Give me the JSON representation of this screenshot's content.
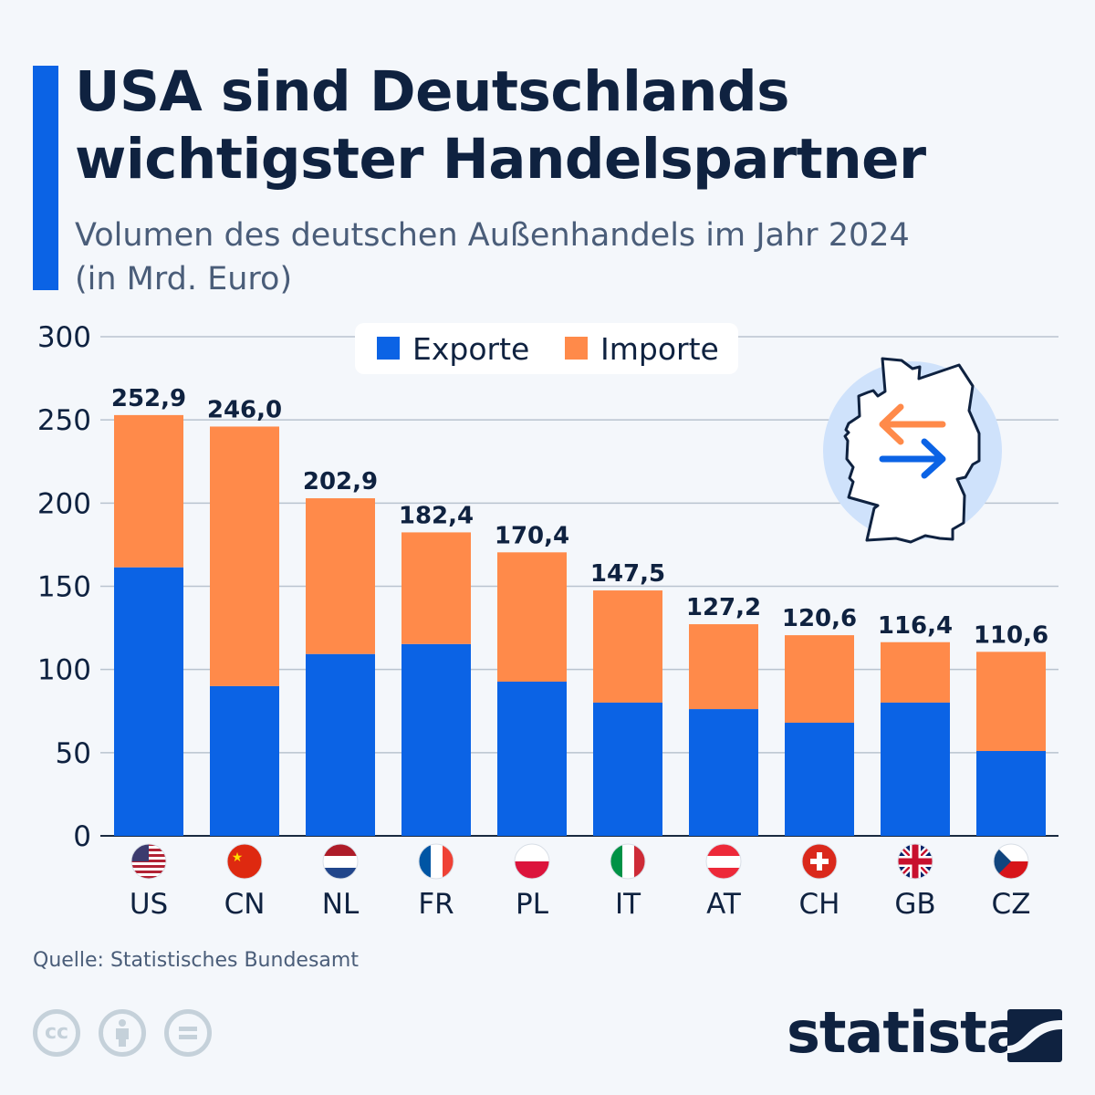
{
  "title": {
    "line1": "USA sind Deutschlands",
    "line2": "wichtigster Handelspartner"
  },
  "subtitle": {
    "line1": "Volumen des deutschen Außenhandels im Jahr 2024",
    "line2": "(in Mrd. Euro)"
  },
  "source": "Quelle: Statistisches Bundesamt",
  "brand": "statista",
  "colors": {
    "exports": "#0b63e5",
    "imports": "#ff8a4a",
    "accent": "#0b63e5",
    "text": "#0f2240"
  },
  "icons": [
    "germany-trade-arrows-icon",
    "cc-icon",
    "attribution-icon",
    "no-derivatives-icon",
    "statista-logo-icon"
  ],
  "chart_data": {
    "type": "bar",
    "stacked": true,
    "categories": [
      "US",
      "CN",
      "NL",
      "FR",
      "PL",
      "IT",
      "AT",
      "CH",
      "GB",
      "CZ"
    ],
    "flags": [
      "us-flag",
      "cn-flag",
      "nl-flag",
      "fr-flag",
      "pl-flag",
      "it-flag",
      "at-flag",
      "ch-flag",
      "gb-flag",
      "cz-flag"
    ],
    "series": [
      {
        "name": "Exporte",
        "values": [
          161.4,
          90.0,
          109.3,
          115.3,
          92.7,
          80.1,
          76.2,
          68.0,
          80.1,
          51.0
        ]
      },
      {
        "name": "Importe",
        "values": [
          91.5,
          156.0,
          93.6,
          67.1,
          77.7,
          67.4,
          51.0,
          52.6,
          36.3,
          59.6
        ]
      }
    ],
    "totals": [
      "252,9",
      "246,0",
      "202,9",
      "182,4",
      "170,4",
      "147,5",
      "127,2",
      "120,6",
      "116,4",
      "110,6"
    ],
    "ylim": [
      0,
      300
    ],
    "yticks": [
      "0",
      "50",
      "100",
      "150",
      "200",
      "250",
      "300"
    ],
    "grid": true,
    "legend": "top-center"
  }
}
